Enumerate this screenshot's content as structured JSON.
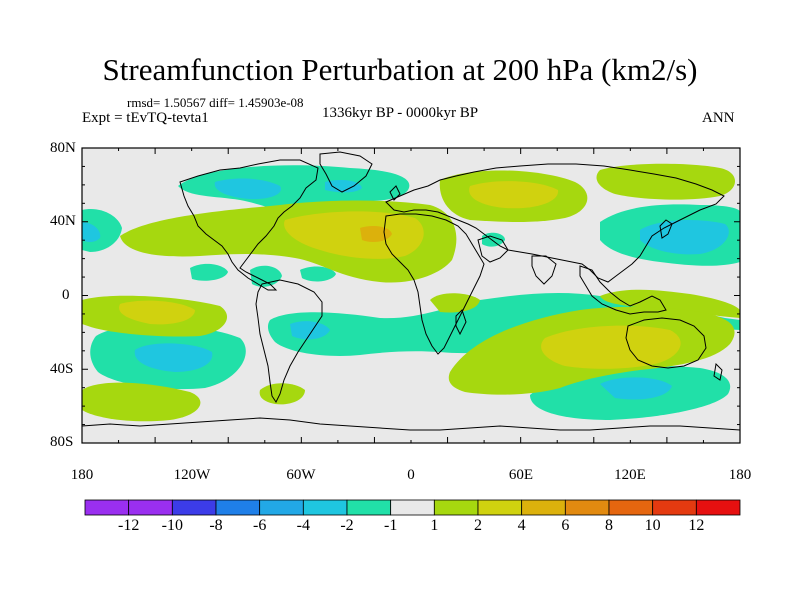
{
  "title": "Streamfunction Perturbation at 200 hPa (km2/s)",
  "stats_line": "rmsd= 1.50567  diff= 1.45903e-08",
  "expt_line": "Expt = tEvTQ-tevta1",
  "period_line": "1336kyr BP - 0000kyr BP",
  "season": "ANN",
  "y_axis_labels": [
    "80N",
    "40N",
    "0",
    "40S",
    "80S"
  ],
  "x_axis_labels": [
    "180",
    "120W",
    "60W",
    "0",
    "60E",
    "120E",
    "180"
  ],
  "colorbar": {
    "labels": [
      "-12",
      "-10",
      "-8",
      "-6",
      "-4",
      "-2",
      "-1",
      "1",
      "2",
      "4",
      "6",
      "8",
      "10",
      "12"
    ],
    "colors": [
      "#9a2ff0",
      "#3c3ce8",
      "#1f7fe8",
      "#22a8e6",
      "#1fc6e0",
      "#21e0a8",
      "#e9e9e9",
      "#a6d80f",
      "#d0d20f",
      "#dcb10c",
      "#e28a10",
      "#e5660f",
      "#e43a10",
      "#e61010"
    ]
  },
  "field_colors": {
    "neutral": "#e9e9e9",
    "pos2": "#a6d80f",
    "pos4": "#d0d20f",
    "pos6": "#dcb10c",
    "pos8": "#e28a10",
    "neg2": "#21e0a8",
    "neg4": "#1fc6e0"
  }
}
